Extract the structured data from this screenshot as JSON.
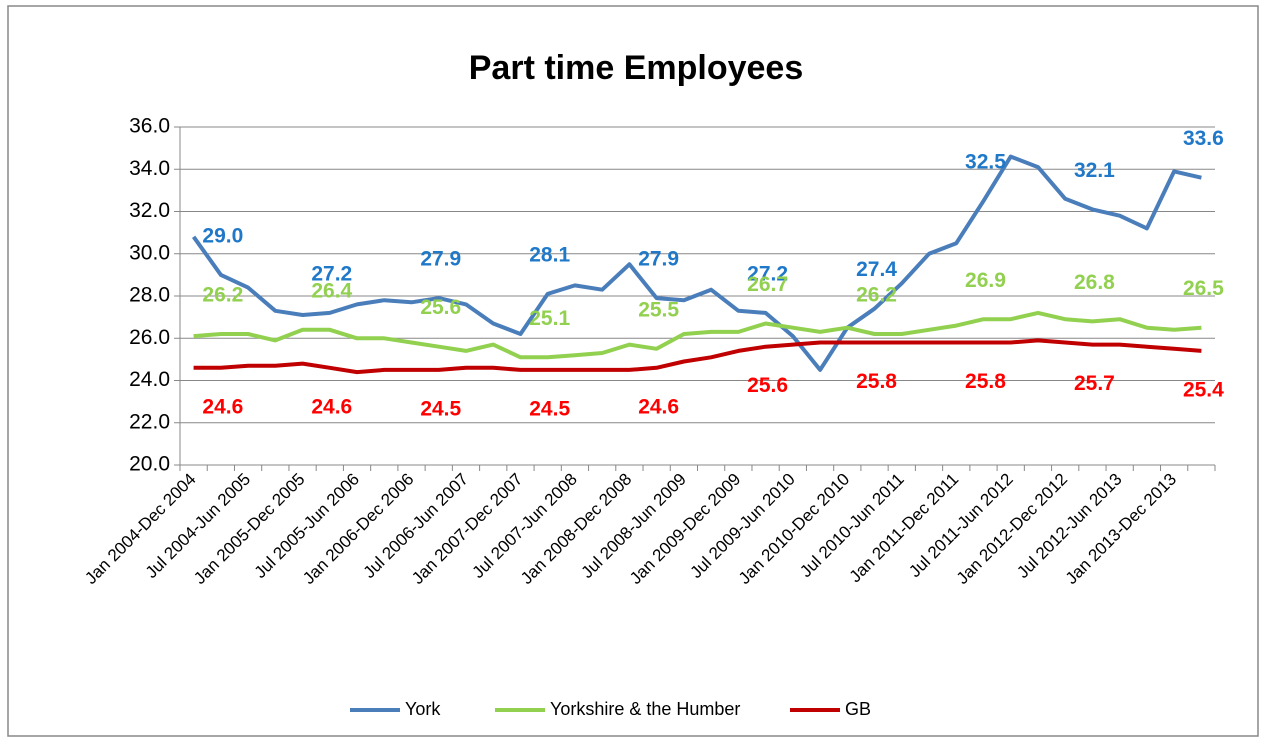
{
  "chart_data": {
    "type": "line",
    "title": "Part time Employees",
    "categories": [
      "Jan 2004-Dec 2004",
      null,
      "Jul 2004-Jun 2005",
      null,
      "Jan 2005-Dec 2005",
      null,
      "Jul 2005-Jun 2006",
      null,
      "Jan 2006-Dec 2006",
      null,
      "Jul 2006-Jun 2007",
      null,
      "Jan 2007-Dec 2007",
      null,
      "Jul 2007-Jun 2008",
      null,
      "Jan 2008-Dec 2008",
      null,
      "Jul 2008-Jun 2009",
      null,
      "Jan 2009-Dec 2009",
      null,
      "Jul 2009-Jun 2010",
      null,
      "Jan 2010-Dec 2010",
      null,
      "Jul 2010-Jun 2011",
      null,
      "Jan 2011-Dec 2011",
      null,
      "Jul 2011-Jun 2012",
      null,
      "Jan 2012-Dec 2012",
      null,
      "Jul 2012-Jun 2013",
      null,
      "Jan 2013-Dec 2013",
      null
    ],
    "series": [
      {
        "name": "York",
        "color": "#4a7ebb",
        "label_color": "#1f78c8",
        "values": [
          30.8,
          29.0,
          28.4,
          27.3,
          27.1,
          27.2,
          27.6,
          27.8,
          27.7,
          27.9,
          27.6,
          26.7,
          26.2,
          28.1,
          28.5,
          28.3,
          29.5,
          27.9,
          27.8,
          28.3,
          27.3,
          27.2,
          26.1,
          24.5,
          26.5,
          27.4,
          28.6,
          30.0,
          30.5,
          32.5,
          34.6,
          34.1,
          32.6,
          32.1,
          31.8,
          31.2,
          33.9,
          33.6
        ],
        "value_labels": [
          null,
          "29.0",
          null,
          null,
          null,
          "27.2",
          null,
          null,
          null,
          "27.9",
          null,
          null,
          null,
          "28.1",
          null,
          null,
          null,
          "27.9",
          null,
          null,
          null,
          "27.2",
          null,
          null,
          null,
          "27.4",
          null,
          null,
          null,
          "32.5",
          null,
          null,
          null,
          "32.1",
          null,
          null,
          null,
          "33.6"
        ]
      },
      {
        "name": "Yorkshire & the Humber",
        "color": "#92d050",
        "label_color": "#92d050",
        "values": [
          26.1,
          26.2,
          26.2,
          25.9,
          26.4,
          26.4,
          26.0,
          26.0,
          25.8,
          25.6,
          25.4,
          25.7,
          25.1,
          25.1,
          25.2,
          25.3,
          25.7,
          25.5,
          26.2,
          26.3,
          26.3,
          26.7,
          26.5,
          26.3,
          26.5,
          26.2,
          26.2,
          26.4,
          26.6,
          26.9,
          26.9,
          27.2,
          26.9,
          26.8,
          26.9,
          26.5,
          26.4,
          26.5
        ],
        "value_labels": [
          null,
          "26.2",
          null,
          null,
          null,
          "26.4",
          null,
          null,
          null,
          "25.6",
          null,
          null,
          null,
          "25.1",
          null,
          null,
          null,
          "25.5",
          null,
          null,
          null,
          "26.7",
          null,
          null,
          null,
          "26.2",
          null,
          null,
          null,
          "26.9",
          null,
          null,
          null,
          "26.8",
          null,
          null,
          null,
          "26.5"
        ]
      },
      {
        "name": "GB",
        "color": "#c00000",
        "label_color": "#ff0000",
        "values": [
          24.6,
          24.6,
          24.7,
          24.7,
          24.8,
          24.6,
          24.4,
          24.5,
          24.5,
          24.5,
          24.6,
          24.6,
          24.5,
          24.5,
          24.5,
          24.5,
          24.5,
          24.6,
          24.9,
          25.1,
          25.4,
          25.6,
          25.7,
          25.8,
          25.8,
          25.8,
          25.8,
          25.8,
          25.8,
          25.8,
          25.8,
          25.9,
          25.8,
          25.7,
          25.7,
          25.6,
          25.5,
          25.4
        ],
        "value_labels": [
          null,
          "24.6",
          null,
          null,
          null,
          "24.6",
          null,
          null,
          null,
          "24.5",
          null,
          null,
          null,
          "24.5",
          null,
          null,
          null,
          "24.6",
          null,
          null,
          null,
          "25.6",
          null,
          null,
          null,
          "25.8",
          null,
          null,
          null,
          "25.8",
          null,
          null,
          null,
          "25.7",
          null,
          null,
          null,
          "25.4"
        ]
      }
    ],
    "ylim": [
      20,
      36
    ],
    "yticks": [
      {
        "value": 20,
        "label": "20.0"
      },
      {
        "value": 22,
        "label": "22.0"
      },
      {
        "value": 24,
        "label": "24.0"
      },
      {
        "value": 26,
        "label": "26.0"
      },
      {
        "value": 28,
        "label": "28.0"
      },
      {
        "value": 30,
        "label": "30.0"
      },
      {
        "value": 32,
        "label": "32.0"
      },
      {
        "value": 34,
        "label": "34.0"
      },
      {
        "value": 36,
        "label": "36.0"
      }
    ],
    "grid": true,
    "legend": "bottom"
  }
}
